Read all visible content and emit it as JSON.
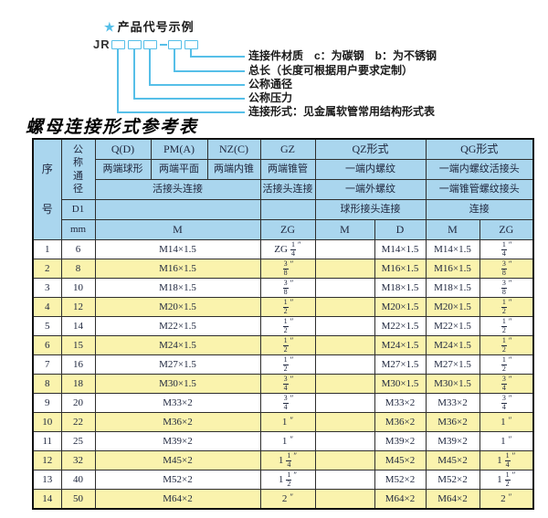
{
  "colors": {
    "accent_blue": "#56bfe8",
    "star_blue": "#2a9fd8",
    "header_bg": "#aad6ee",
    "row_alt_bg": "#faf3ad",
    "border": "#2e2e2e"
  },
  "diagram": {
    "star": "★",
    "title": "产品代号示例",
    "prefix": "JR",
    "labels": [
      "连接件材质　c：为碳钢　b：为不锈钢",
      "总长（长度可根据用户要求定制）",
      "公称通径",
      "公称压力",
      "连接形式：见金属软管常用结构形式表"
    ]
  },
  "table": {
    "title": "螺母连接形式参考表",
    "header": {
      "seq": "序号",
      "dn": "公称通径",
      "d1": "D1",
      "mm": "mm",
      "m_unit": "M",
      "union_conn": "活接头连接",
      "q": {
        "code": "Q(D)",
        "desc": "两端球形"
      },
      "pm": {
        "code": "PM(A)",
        "desc": "两端平面"
      },
      "nz": {
        "code": "NZ(C)",
        "desc": "两端内锥"
      },
      "gz": {
        "code": "GZ",
        "desc": "两端锥管",
        "conn": "活接头连接",
        "unit": "ZG"
      },
      "qz": {
        "code": "QZ形式",
        "desc1": "一端内螺纹",
        "desc2": "一端外螺纹",
        "conn": "球形接头连接",
        "unit1": "M",
        "unit2": "D"
      },
      "qg": {
        "code": "QG形式",
        "desc1": "一端内螺纹活接头",
        "desc2": "一端锥管螺纹接头",
        "conn": "连接",
        "unit1": "M",
        "unit2": "ZG"
      }
    },
    "rows": [
      {
        "no": "1",
        "dn": "6",
        "m": "M14×1.5",
        "gz": "ZG 1/4″",
        "qz_m": "",
        "qz_d": "M14×1.5",
        "qg_m": "M14×1.5",
        "qg_zg": "1/4″"
      },
      {
        "no": "2",
        "dn": "8",
        "m": "M16×1.5",
        "gz": "3/8″",
        "qz_m": "",
        "qz_d": "M16×1.5",
        "qg_m": "M16×1.5",
        "qg_zg": "3/8″"
      },
      {
        "no": "3",
        "dn": "10",
        "m": "M18×1.5",
        "gz": "3/8″",
        "qz_m": "",
        "qz_d": "M18×1.5",
        "qg_m": "M18×1.5",
        "qg_zg": "3/8″"
      },
      {
        "no": "4",
        "dn": "12",
        "m": "M20×1.5",
        "gz": "1/2″",
        "qz_m": "",
        "qz_d": "M20×1.5",
        "qg_m": "M20×1.5",
        "qg_zg": "1/2″"
      },
      {
        "no": "5",
        "dn": "14",
        "m": "M22×1.5",
        "gz": "1/2″",
        "qz_m": "",
        "qz_d": "M22×1.5",
        "qg_m": "M22×1.5",
        "qg_zg": "1/2″"
      },
      {
        "no": "6",
        "dn": "15",
        "m": "M24×1.5",
        "gz": "1/2″",
        "qz_m": "",
        "qz_d": "M24×1.5",
        "qg_m": "M24×1.5",
        "qg_zg": "1/2″"
      },
      {
        "no": "7",
        "dn": "16",
        "m": "M27×1.5",
        "gz": "1/2″",
        "qz_m": "",
        "qz_d": "M27×1.5",
        "qg_m": "M27×1.5",
        "qg_zg": "1/2″"
      },
      {
        "no": "8",
        "dn": "18",
        "m": "M30×1.5",
        "gz": "3/4″",
        "qz_m": "",
        "qz_d": "M30×1.5",
        "qg_m": "M30×1.5",
        "qg_zg": "3/4″"
      },
      {
        "no": "9",
        "dn": "20",
        "m": "M33×2",
        "gz": "3/4″",
        "qz_m": "",
        "qz_d": "M33×2",
        "qg_m": "M33×2",
        "qg_zg": "3/4″"
      },
      {
        "no": "10",
        "dn": "22",
        "m": "M36×2",
        "gz": "1″",
        "qz_m": "",
        "qz_d": "M36×2",
        "qg_m": "M36×2",
        "qg_zg": "1″"
      },
      {
        "no": "11",
        "dn": "25",
        "m": "M39×2",
        "gz": "1″",
        "qz_m": "",
        "qz_d": "M39×2",
        "qg_m": "M39×2",
        "qg_zg": "1″"
      },
      {
        "no": "12",
        "dn": "32",
        "m": "M45×2",
        "gz": "1 1/4″",
        "qz_m": "",
        "qz_d": "M45×2",
        "qg_m": "M45×2",
        "qg_zg": "1 1/4″"
      },
      {
        "no": "13",
        "dn": "40",
        "m": "M52×2",
        "gz": "1 1/2″",
        "qz_m": "",
        "qz_d": "M52×2",
        "qg_m": "M52×2",
        "qg_zg": "1 1/2″"
      },
      {
        "no": "14",
        "dn": "50",
        "m": "M64×2",
        "gz": "2″",
        "qz_m": "",
        "qz_d": "M64×2",
        "qg_m": "M64×2",
        "qg_zg": "2″"
      }
    ]
  }
}
